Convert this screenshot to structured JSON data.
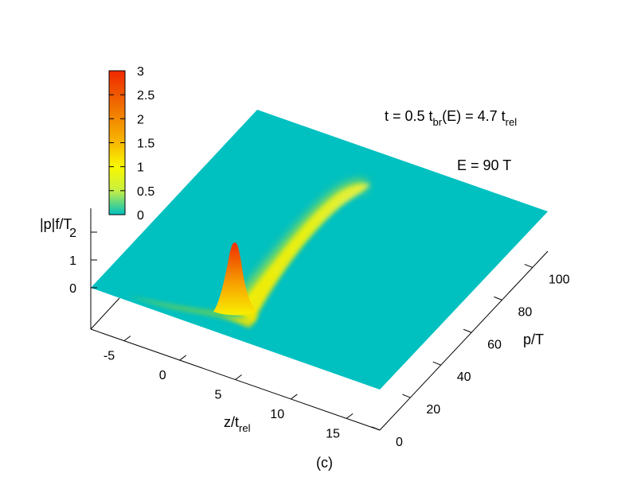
{
  "chart_data": {
    "type": "heatmap",
    "subtype": "3d-surface",
    "x_axis": {
      "label_main": "z/t",
      "label_sub": "rel",
      "ticks": [
        "-5",
        "0",
        "5",
        "10",
        "15"
      ],
      "range": [
        -8,
        18
      ]
    },
    "y_axis": {
      "label": "p/T",
      "ticks": [
        "0",
        "20",
        "40",
        "60",
        "80",
        "100"
      ],
      "range": [
        0,
        110
      ]
    },
    "z_axis": {
      "label": "|p|f/T",
      "ticks": [
        "0",
        "1",
        "2"
      ],
      "range": [
        0,
        2.6
      ]
    },
    "colorbar": {
      "ticks": [
        "3",
        "2.5",
        "2",
        "1.5",
        "1",
        "0.5",
        "0"
      ],
      "range": [
        0,
        3
      ],
      "colors": [
        "#00c0c0",
        "#c8f040",
        "#f8f800",
        "#f8b800",
        "#f07000",
        "#f02800"
      ]
    },
    "annotations": {
      "line1": {
        "pre": "t = 0.5 t",
        "sub1": "br",
        "mid": "(E) = 4.7 t",
        "sub2": "rel"
      },
      "line2": "E = 90 T"
    },
    "panel_label": "(c)",
    "peaks": [
      {
        "kind": "sharp-peak",
        "z": 2.0,
        "p": 6,
        "max": 2.3
      },
      {
        "kind": "ridge",
        "z_start": 2.4,
        "p_start": 8,
        "z_end": 12,
        "p_end": 92,
        "height": 0.9
      }
    ]
  }
}
